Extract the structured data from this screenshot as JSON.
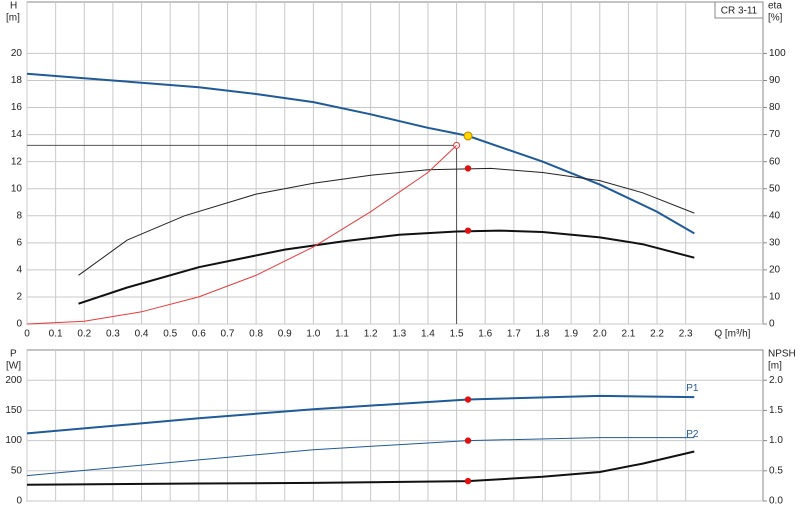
{
  "chart_data": [
    {
      "type": "line",
      "model": "CR 3-11",
      "y_label": "H",
      "y_unit": "[m]",
      "y2_label": "eta",
      "y2_unit": "[%]",
      "x_label": "Q [m³/h]",
      "xlim": [
        0,
        2.57
      ],
      "ylim": [
        0,
        23.8
      ],
      "y2lim": [
        0,
        119
      ],
      "xticks": [
        0,
        0.1,
        0.2,
        0.3,
        0.4,
        0.5,
        0.6,
        0.7,
        0.8,
        0.9,
        {
          "value": 1,
          "label": "1.0"
        },
        1.1,
        1.2,
        1.3,
        1.4,
        1.5,
        1.6,
        1.7,
        1.8,
        1.9,
        {
          "value": 2,
          "label": "2.0"
        },
        2.1,
        2.2,
        2.3
      ],
      "yticks": [
        0,
        2,
        4,
        6,
        8,
        10,
        12,
        14,
        16,
        18,
        20
      ],
      "y2ticks": [
        0,
        10,
        20,
        30,
        40,
        50,
        60,
        70,
        80,
        90,
        100
      ],
      "grid": true,
      "series": [
        {
          "color": "#1f5a99",
          "line_width": 2,
          "x": [
            0,
            0.3,
            0.6,
            0.8,
            1.0,
            1.2,
            1.4,
            1.54,
            1.8,
            2.0,
            2.2,
            2.33
          ],
          "values": [
            18.5,
            18.0,
            17.5,
            17.0,
            16.4,
            15.5,
            14.5,
            13.9,
            12.0,
            10.3,
            8.3,
            6.7
          ]
        },
        {
          "color": "#222222",
          "line_width": 1,
          "axis": "y2",
          "x": [
            0.18,
            0.35,
            0.55,
            0.8,
            1.0,
            1.2,
            1.4,
            1.62,
            1.8,
            2.0,
            2.15,
            2.33
          ],
          "values": [
            18,
            31,
            40,
            48,
            52,
            55,
            57,
            57.5,
            56,
            53,
            48.5,
            41
          ]
        },
        {
          "color": "#111111",
          "line_width": 2,
          "axis": "y2",
          "x": [
            0.18,
            0.35,
            0.6,
            0.9,
            1.1,
            1.3,
            1.5,
            1.65,
            1.8,
            2.0,
            2.15,
            2.33
          ],
          "values": [
            7.5,
            13.5,
            21,
            27.5,
            30.5,
            33,
            34.2,
            34.5,
            34,
            32,
            29.5,
            24.5
          ]
        },
        {
          "color": "#e83a3a",
          "line_width": 1,
          "x": [
            0,
            0.2,
            0.4,
            0.6,
            0.8,
            1.0,
            1.2,
            1.4,
            1.5
          ],
          "values": [
            0,
            0.2,
            0.9,
            2.0,
            3.6,
            5.7,
            8.3,
            11.2,
            13.2
          ]
        }
      ],
      "guide": {
        "x": 1.5,
        "y": 13.2
      },
      "points": [
        {
          "x": 1.54,
          "y": 13.9,
          "color": "#ffd400"
        },
        {
          "x": 1.54,
          "y": 57.5,
          "color": "#e01010",
          "axis": "y2"
        },
        {
          "x": 1.54,
          "y": 34.5,
          "color": "#e01010",
          "axis": "y2"
        }
      ]
    },
    {
      "type": "line",
      "y_label": "P",
      "y_unit": "[W]",
      "y2_label": "NPSH",
      "y2_unit": "[m]",
      "xlim": [
        0,
        2.57
      ],
      "ylim": [
        0,
        250
      ],
      "y2lim": [
        0,
        2.5
      ],
      "xticks": [
        0,
        0.1,
        0.2,
        0.3,
        0.4,
        0.5,
        0.6,
        0.7,
        0.8,
        0.9,
        1,
        1.1,
        1.2,
        1.3,
        1.4,
        1.5,
        1.6,
        1.7,
        1.8,
        1.9,
        2,
        2.1,
        2.2,
        2.3
      ],
      "yticks": [
        0,
        50,
        100,
        150,
        200
      ],
      "y2ticks": [
        {
          "value": 0,
          "label": "0.0"
        },
        0.5,
        {
          "value": 1,
          "label": "1.0"
        },
        1.5,
        {
          "value": 2,
          "label": "2.0"
        }
      ],
      "grid": true,
      "series": [
        {
          "name": "P1",
          "color": "#1f5a99",
          "line_width": 2,
          "x": [
            0,
            0.6,
            1.0,
            1.54,
            2.0,
            2.33
          ],
          "values": [
            112,
            137,
            152,
            168,
            174,
            172
          ]
        },
        {
          "name": "P2",
          "color": "#1f5a99",
          "line_width": 1,
          "x": [
            0,
            0.6,
            1.0,
            1.54,
            2.0,
            2.33
          ],
          "values": [
            42,
            68,
            85,
            100,
            105,
            105
          ]
        },
        {
          "color": "#111111",
          "line_width": 2,
          "axis": "y2",
          "x": [
            0,
            0.6,
            1.0,
            1.54,
            1.8,
            2.0,
            2.15,
            2.33
          ],
          "values": [
            0.27,
            0.29,
            0.3,
            0.33,
            0.4,
            0.48,
            0.62,
            0.82
          ]
        }
      ],
      "points": [
        {
          "x": 1.54,
          "y": 168,
          "color": "#e01010"
        },
        {
          "x": 1.54,
          "y": 100,
          "color": "#e01010"
        },
        {
          "x": 1.54,
          "y": 0.33,
          "color": "#e01010",
          "axis": "y2"
        }
      ]
    }
  ]
}
